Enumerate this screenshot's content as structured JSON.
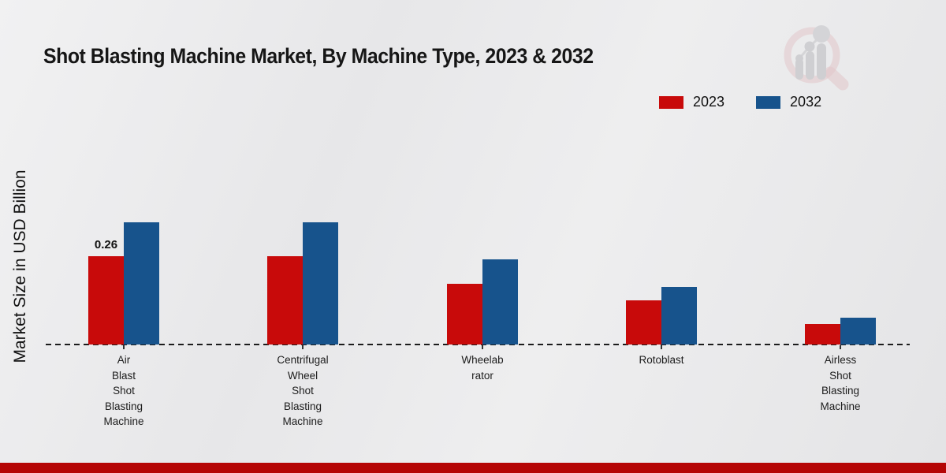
{
  "title": "Shot Blasting Machine Market, By Machine Type, 2023 & 2032",
  "ylabel": "Market Size in USD Billion",
  "legend": [
    {
      "label": "2023",
      "color": "#c80a0a"
    },
    {
      "label": "2032",
      "color": "#17538c"
    }
  ],
  "annotation": {
    "text": "0.26",
    "group": 0,
    "series": 0
  },
  "colors": {
    "bar_2023": "#c80a0a",
    "bar_2032": "#17538c",
    "footer_strip": "#b50505",
    "baseline": "#1c1c1c"
  },
  "watermark_icon": "magnifier-bar-chart-logo",
  "chart_data": {
    "type": "bar",
    "title": "Shot Blasting Machine Market, By Machine Type, 2023 & 2032",
    "xlabel": "",
    "ylabel": "Market Size in USD Billion",
    "ylim": [
      0,
      0.4
    ],
    "grid": false,
    "legend_position": "top-right",
    "baseline_style": "dashed",
    "categories": [
      "Air Blast Shot Blasting Machine",
      "Centrifugal Wheel Shot Blasting Machine",
      "Wheelabrator",
      "Rotoblast",
      "Airless Shot Blasting Machine"
    ],
    "category_lines": [
      [
        "Air",
        "Blast",
        "Shot",
        "Blasting",
        "Machine"
      ],
      [
        "Centrifugal",
        "Wheel",
        "Shot",
        "Blasting",
        "Machine"
      ],
      [
        "Wheelab",
        "rator"
      ],
      [
        "Rotoblast"
      ],
      [
        "Airless",
        "Shot",
        "Blasting",
        "Machine"
      ]
    ],
    "series": [
      {
        "name": "2023",
        "color": "#c80a0a",
        "values": [
          0.26,
          0.26,
          0.18,
          0.13,
          0.06
        ]
      },
      {
        "name": "2032",
        "color": "#17538c",
        "values": [
          0.36,
          0.36,
          0.25,
          0.17,
          0.08
        ]
      }
    ],
    "data_labels": [
      {
        "series": "2023",
        "category": "Air Blast Shot Blasting Machine",
        "value": 0.26
      }
    ]
  }
}
